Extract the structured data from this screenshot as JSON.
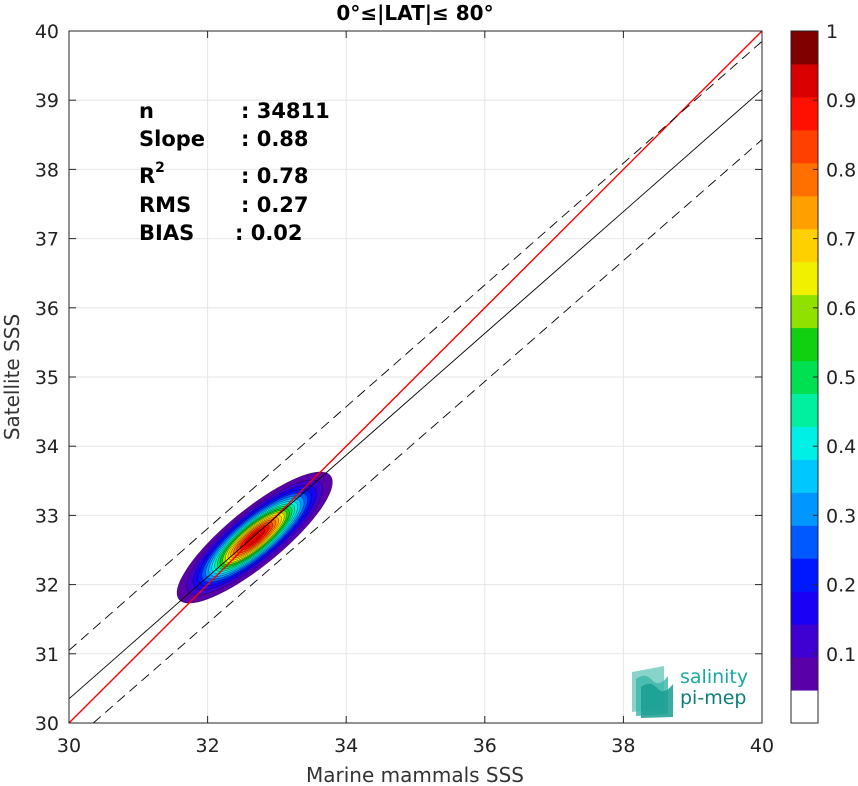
{
  "chart_data": {
    "type": "scatter",
    "title": "0°≤|LAT|≤ 80°",
    "xlabel": "Marine mammals SSS",
    "ylabel": "Satellite SSS",
    "xlim": [
      30,
      40
    ],
    "ylim": [
      30,
      40
    ],
    "xticks": [
      30,
      32,
      34,
      36,
      38,
      40
    ],
    "yticks": [
      30,
      31,
      32,
      33,
      34,
      35,
      36,
      37,
      38,
      39,
      40
    ],
    "grid": true,
    "stats": [
      {
        "label": "n",
        "value": ": 34811"
      },
      {
        "label": "Slope",
        "value": ": 0.88"
      },
      {
        "label": "R",
        "sup": "2",
        "value": ": 0.78"
      },
      {
        "label": "RMS",
        "value": ": 0.27"
      },
      {
        "label": "BIAS",
        "value": ": 0.02"
      }
    ],
    "lines": [
      {
        "kind": "identity",
        "color": "#ff0000",
        "x": [
          30,
          40
        ],
        "y": [
          30,
          40
        ]
      },
      {
        "kind": "regression",
        "color": "#000000",
        "x": [
          30,
          40
        ],
        "y": [
          30.35,
          39.15
        ]
      },
      {
        "kind": "upper-bound",
        "color": "#000000",
        "dash": true,
        "x": [
          30,
          40
        ],
        "y": [
          31.05,
          39.85
        ]
      },
      {
        "kind": "lower-bound",
        "color": "#000000",
        "dash": true,
        "x": [
          30.35,
          40
        ],
        "y": [
          30,
          38.43
        ]
      }
    ],
    "density": {
      "center": [
        32.68,
        32.68
      ],
      "cov": [
        [
          0.21,
          0.15
        ],
        [
          0.15,
          0.15
        ]
      ],
      "levels": [
        0.05,
        0.1,
        0.15,
        0.2,
        0.25,
        0.3,
        0.35,
        0.4,
        0.45,
        0.5,
        0.55,
        0.6,
        0.65,
        0.7,
        0.75,
        0.8,
        0.85,
        0.9,
        0.95
      ]
    },
    "colorbar": {
      "ticks": [
        0.1,
        0.2,
        0.3,
        0.4,
        0.5,
        0.6,
        0.7,
        0.8,
        0.9,
        1
      ],
      "tick_labels": [
        "0.1",
        "0.2",
        "0.3",
        "0.4",
        "0.5",
        "0.6",
        "0.7",
        "0.8",
        "0.9",
        "1"
      ],
      "colors": [
        "#ffffff",
        "#5a00a8",
        "#3f00d2",
        "#1a00f5",
        "#0018ff",
        "#0058ff",
        "#0096ff",
        "#00c8ff",
        "#00f0e6",
        "#00f0a0",
        "#00e050",
        "#10d010",
        "#90e000",
        "#f0f000",
        "#ffd000",
        "#ffa000",
        "#ff7000",
        "#ff4000",
        "#ff1000",
        "#d80000",
        "#800000"
      ]
    }
  },
  "logo": {
    "line1": "salinity",
    "line2": "pi-mep"
  }
}
